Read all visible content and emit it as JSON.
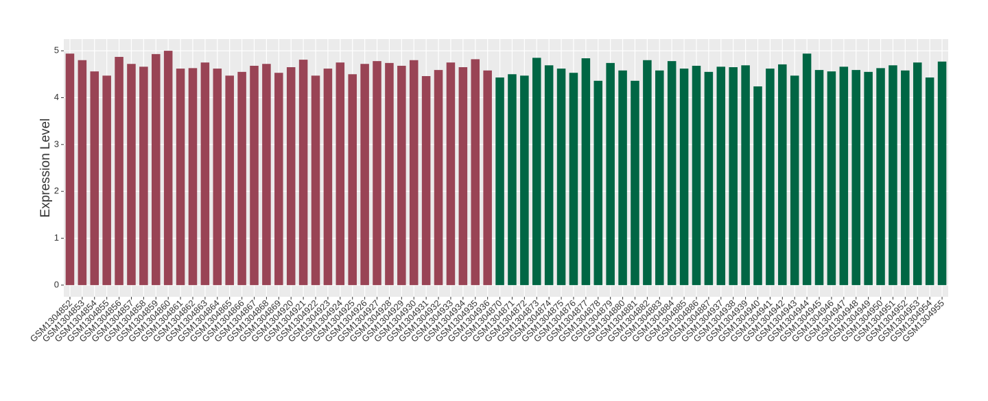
{
  "chart_data": {
    "type": "bar",
    "y_label": "Expression Level",
    "categories": [
      "GSM1304852",
      "GSM1304853",
      "GSM1304854",
      "GSM1304855",
      "GSM1304856",
      "GSM1304857",
      "GSM1304858",
      "GSM1304859",
      "GSM1304860",
      "GSM1304861",
      "GSM1304862",
      "GSM1304863",
      "GSM1304864",
      "GSM1304865",
      "GSM1304866",
      "GSM1304867",
      "GSM1304868",
      "GSM1304869",
      "GSM1304920",
      "GSM1304921",
      "GSM1304922",
      "GSM1304923",
      "GSM1304924",
      "GSM1304925",
      "GSM1304926",
      "GSM1304927",
      "GSM1304928",
      "GSM1304929",
      "GSM1304930",
      "GSM1304931",
      "GSM1304932",
      "GSM1304933",
      "GSM1304934",
      "GSM1304935",
      "GSM1304936",
      "GSM1304870",
      "GSM1304871",
      "GSM1304872",
      "GSM1304873",
      "GSM1304874",
      "GSM1304875",
      "GSM1304876",
      "GSM1304877",
      "GSM1304878",
      "GSM1304879",
      "GSM1304880",
      "GSM1304881",
      "GSM1304882",
      "GSM1304883",
      "GSM1304884",
      "GSM1304885",
      "GSM1304886",
      "GSM1304887",
      "GSM1304937",
      "GSM1304938",
      "GSM1304939",
      "GSM1304940",
      "GSM1304941",
      "GSM1304942",
      "GSM1304943",
      "GSM1304944",
      "GSM1304945",
      "GSM1304946",
      "GSM1304947",
      "GSM1304948",
      "GSM1304949",
      "GSM1304950",
      "GSM1304951",
      "GSM1304952",
      "GSM1304953",
      "GSM1304954",
      "GSM1304955"
    ],
    "values": [
      4.94,
      4.8,
      4.56,
      4.47,
      4.87,
      4.72,
      4.66,
      4.93,
      5.0,
      4.62,
      4.63,
      4.75,
      4.62,
      4.47,
      4.55,
      4.68,
      4.72,
      4.53,
      4.65,
      4.81,
      4.47,
      4.62,
      4.75,
      4.5,
      4.72,
      4.78,
      4.74,
      4.68,
      4.8,
      4.46,
      4.59,
      4.75,
      4.65,
      4.82,
      4.58,
      4.43,
      4.5,
      4.47,
      4.85,
      4.69,
      4.62,
      4.53,
      4.84,
      4.36,
      4.74,
      4.58,
      4.36,
      4.8,
      4.58,
      4.78,
      4.62,
      4.68,
      4.55,
      4.66,
      4.65,
      4.69,
      4.24,
      4.62,
      4.71,
      4.47,
      4.94,
      4.59,
      4.56,
      4.66,
      4.59,
      4.55,
      4.63,
      4.69,
      4.58,
      4.75,
      4.43,
      4.77
    ],
    "colors": [
      "#994455",
      "#994455",
      "#994455",
      "#994455",
      "#994455",
      "#994455",
      "#994455",
      "#994455",
      "#994455",
      "#994455",
      "#994455",
      "#994455",
      "#994455",
      "#994455",
      "#994455",
      "#994455",
      "#994455",
      "#994455",
      "#994455",
      "#994455",
      "#994455",
      "#994455",
      "#994455",
      "#994455",
      "#994455",
      "#994455",
      "#994455",
      "#994455",
      "#994455",
      "#994455",
      "#994455",
      "#994455",
      "#994455",
      "#994455",
      "#994455",
      "#006644",
      "#006644",
      "#006644",
      "#006644",
      "#006644",
      "#006644",
      "#006644",
      "#006644",
      "#006644",
      "#006644",
      "#006644",
      "#006644",
      "#006644",
      "#006644",
      "#006644",
      "#006644",
      "#006644",
      "#006644",
      "#006644",
      "#006644",
      "#006644",
      "#006644",
      "#006644",
      "#006644",
      "#006644",
      "#006644",
      "#006644",
      "#006644",
      "#006644",
      "#006644",
      "#006644",
      "#006644",
      "#006644",
      "#006644",
      "#006644",
      "#006644",
      "#006644"
    ],
    "ylim": [
      -0.25,
      5.25
    ],
    "yticks": [
      0,
      1,
      2,
      3,
      4,
      5
    ],
    "grid": true
  }
}
